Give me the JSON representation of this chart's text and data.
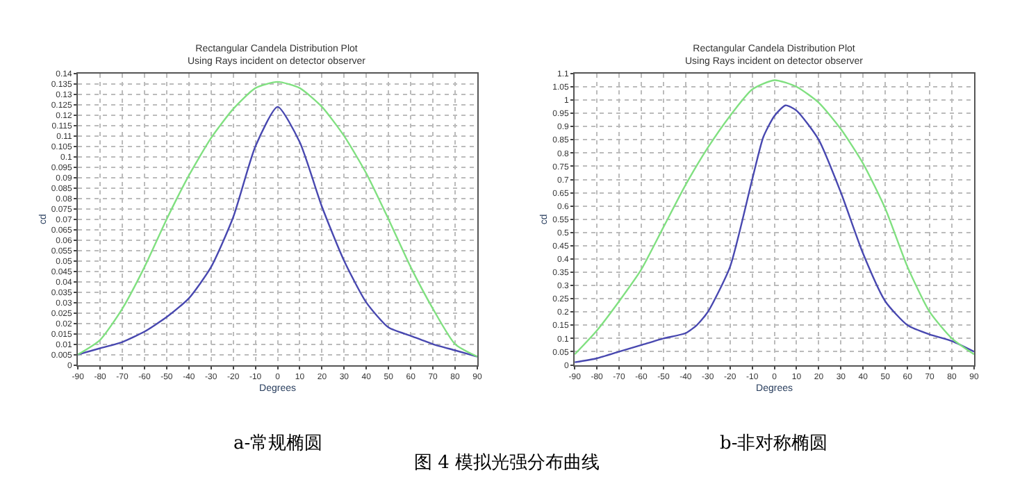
{
  "chart_data": [
    {
      "type": "line",
      "title": "Rectangular Candela Distribution Plot",
      "subtitle": "Using Rays incident on detector observer",
      "xlabel": "Degrees",
      "ylabel": "cd",
      "x": [
        -90,
        -80,
        -70,
        -60,
        -50,
        -40,
        -30,
        -20,
        -10,
        0,
        10,
        20,
        30,
        40,
        50,
        60,
        70,
        80,
        90
      ],
      "series": [
        {
          "color": "#4848b0",
          "values": [
            0.005,
            0.008,
            0.011,
            0.016,
            0.023,
            0.032,
            0.047,
            0.071,
            0.105,
            0.124,
            0.107,
            0.076,
            0.05,
            0.03,
            0.018,
            0.014,
            0.01,
            0.007,
            0.004
          ]
        },
        {
          "color": "#80e080",
          "values": [
            0.005,
            0.012,
            0.027,
            0.047,
            0.07,
            0.091,
            0.109,
            0.123,
            0.133,
            0.136,
            0.133,
            0.124,
            0.11,
            0.092,
            0.07,
            0.047,
            0.027,
            0.01,
            0.004
          ]
        }
      ],
      "xlim": [
        -90,
        90
      ],
      "xticks": [
        -90,
        -80,
        -70,
        -60,
        -50,
        -40,
        -30,
        -20,
        -10,
        0,
        10,
        20,
        30,
        40,
        50,
        60,
        70,
        80,
        90
      ],
      "ylim": [
        0,
        0.14
      ],
      "yticks": [
        0,
        0.005,
        0.01,
        0.015,
        0.02,
        0.025,
        0.03,
        0.035,
        0.04,
        0.045,
        0.05,
        0.055,
        0.06,
        0.065,
        0.07,
        0.075,
        0.08,
        0.085,
        0.09,
        0.095,
        0.1,
        0.105,
        0.11,
        0.115,
        0.12,
        0.125,
        0.13,
        0.135,
        0.14
      ],
      "grid": true,
      "line_style": "solid",
      "marker": "none",
      "annotations": [
        "a-常规椭圆",
        "图 4 模拟光强分布曲线"
      ]
    },
    {
      "type": "line",
      "title": "Rectangular Candela Distribution Plot",
      "subtitle": "Using Rays incident on detector observer",
      "xlabel": "Degrees",
      "ylabel": "cd",
      "series": [
        {
          "color": "#4848b0",
          "x": [
            -90,
            -80,
            -70,
            -60,
            -50,
            -40,
            -35,
            -30,
            -20,
            -10,
            -5,
            0,
            5,
            10,
            20,
            30,
            40,
            50,
            60,
            70,
            80,
            90
          ],
          "values": [
            0.01,
            0.025,
            0.05,
            0.075,
            0.1,
            0.12,
            0.15,
            0.2,
            0.37,
            0.7,
            0.86,
            0.94,
            0.98,
            0.96,
            0.85,
            0.65,
            0.42,
            0.24,
            0.15,
            0.115,
            0.09,
            0.05
          ]
        },
        {
          "color": "#80e080",
          "x": [
            -90,
            -80,
            -70,
            -60,
            -50,
            -40,
            -30,
            -20,
            -10,
            0,
            10,
            20,
            30,
            40,
            50,
            60,
            70,
            80,
            90
          ],
          "values": [
            0.04,
            0.13,
            0.24,
            0.36,
            0.52,
            0.68,
            0.82,
            0.94,
            1.04,
            1.075,
            1.05,
            0.99,
            0.89,
            0.76,
            0.59,
            0.37,
            0.2,
            0.1,
            0.04
          ]
        }
      ],
      "xlim": [
        -90,
        90
      ],
      "xticks": [
        -90,
        -80,
        -70,
        -60,
        -50,
        -40,
        -30,
        -20,
        -10,
        0,
        10,
        20,
        30,
        40,
        50,
        60,
        70,
        80,
        90
      ],
      "ylim": [
        0,
        1.1
      ],
      "yticks": [
        0,
        0.05,
        0.1,
        0.15,
        0.2,
        0.25,
        0.3,
        0.35,
        0.4,
        0.45,
        0.5,
        0.55,
        0.6,
        0.65,
        0.7,
        0.75,
        0.8,
        0.85,
        0.9,
        0.95,
        1,
        1.05,
        1.1
      ],
      "grid": true,
      "line_style": "solid",
      "marker": "none",
      "annotations": [
        "b-非对称椭圆"
      ]
    }
  ]
}
